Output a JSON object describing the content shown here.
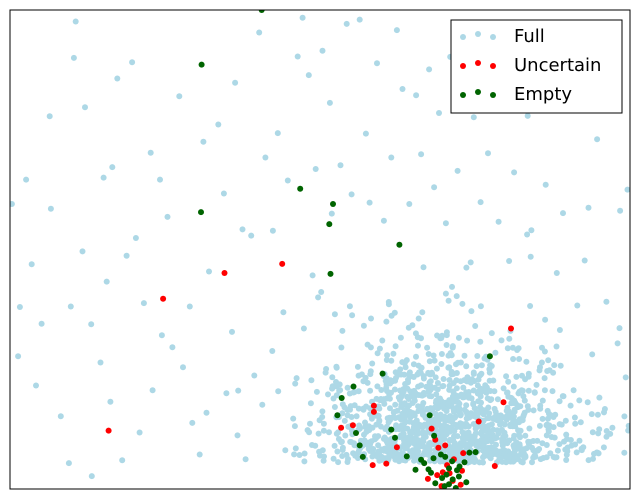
{
  "chart_data": {
    "type": "scatter",
    "title": "",
    "xlabel": "",
    "ylabel": "",
    "xlim": [
      0,
      100
    ],
    "ylim": [
      0,
      100
    ],
    "axis_ticks": false,
    "grid": false,
    "legend_placement": "top-right",
    "series": [
      {
        "name": "Full",
        "color": "#add8e6",
        "cluster": {
          "count": 1250,
          "center": [
            70,
            9
          ],
          "spread": [
            10,
            10
          ]
        },
        "points": [
          [
            0.3,
            59.5
          ],
          [
            1.3,
            27.7
          ],
          [
            1.6,
            38.0
          ],
          [
            2.6,
            64.6
          ],
          [
            3.5,
            46.9
          ],
          [
            5.1,
            34.5
          ],
          [
            6.4,
            77.8
          ],
          [
            6.6,
            58.5
          ],
          [
            8.2,
            15.2
          ],
          [
            9.8,
            38.1
          ],
          [
            10.3,
            90.0
          ],
          [
            10.6,
            97.6
          ],
          [
            11.7,
            49.6
          ],
          [
            12.1,
            79.7
          ],
          [
            13.1,
            34.4
          ],
          [
            13.2,
            2.7
          ],
          [
            15.1,
            65.0
          ],
          [
            15.6,
            43.3
          ],
          [
            16.2,
            18.2
          ],
          [
            16.5,
            67.2
          ],
          [
            17.3,
            85.7
          ],
          [
            18.8,
            48.7
          ],
          [
            19.7,
            89.1
          ],
          [
            20.3,
            52.4
          ],
          [
            20.9,
            11.8
          ],
          [
            21.6,
            38.8
          ],
          [
            22.7,
            70.2
          ],
          [
            24.2,
            64.6
          ],
          [
            24.5,
            32.1
          ],
          [
            25.4,
            56.8
          ],
          [
            26.2,
            29.6
          ],
          [
            27.3,
            82.0
          ],
          [
            29.0,
            38.1
          ],
          [
            29.4,
            13.8
          ],
          [
            30.6,
            7.2
          ],
          [
            31.2,
            72.5
          ],
          [
            32.1,
            45.4
          ],
          [
            33.6,
            76.1
          ],
          [
            34.5,
            61.7
          ],
          [
            35.8,
            32.8
          ],
          [
            36.3,
            84.8
          ],
          [
            37.5,
            54.2
          ],
          [
            38.9,
            52.9
          ],
          [
            39.4,
            23.7
          ],
          [
            40.2,
            95.3
          ],
          [
            41.2,
            69.2
          ],
          [
            42.4,
            53.9
          ],
          [
            43.2,
            74.3
          ],
          [
            44.1,
            36.9
          ],
          [
            44.8,
            64.4
          ],
          [
            46.4,
            90.3
          ],
          [
            47.2,
            98.4
          ],
          [
            48.2,
            86.4
          ],
          [
            48.8,
            44.6
          ],
          [
            49.3,
            66.8
          ],
          [
            50.4,
            91.5
          ],
          [
            51.6,
            80.6
          ],
          [
            51.9,
            57.5
          ],
          [
            53.3,
            67.6
          ],
          [
            54.3,
            97.1
          ],
          [
            55.1,
            61.5
          ],
          [
            56.4,
            98.0
          ],
          [
            57.4,
            74.2
          ],
          [
            58.0,
            59.8
          ],
          [
            59.2,
            88.9
          ],
          [
            60.3,
            56.0
          ],
          [
            61.5,
            69.2
          ],
          [
            62.4,
            95.8
          ],
          [
            63.3,
            83.5
          ],
          [
            64.4,
            59.5
          ],
          [
            65.5,
            82.2
          ],
          [
            66.3,
            69.9
          ],
          [
            66.7,
            46.3
          ],
          [
            67.6,
            87.6
          ],
          [
            68.4,
            63.0
          ],
          [
            69.2,
            78.5
          ],
          [
            70.3,
            55.5
          ],
          [
            71.0,
            90.2
          ],
          [
            72.2,
            66.4
          ],
          [
            73.1,
            96.0
          ],
          [
            74.3,
            47.3
          ],
          [
            74.8,
            77.6
          ],
          [
            75.9,
            59.9
          ],
          [
            77.1,
            70.1
          ],
          [
            77.6,
            95.3
          ],
          [
            78.8,
            55.8
          ],
          [
            79.9,
            85.0
          ],
          [
            80.5,
            47.6
          ],
          [
            81.3,
            66.1
          ],
          [
            82.3,
            93.8
          ],
          [
            83.5,
            77.9
          ],
          [
            84.1,
            54.0
          ],
          [
            85.3,
            80.6
          ],
          [
            86.4,
            63.5
          ],
          [
            87.8,
            87.3
          ],
          [
            88.2,
            45.1
          ],
          [
            89.2,
            57.6
          ],
          [
            90.2,
            92.3
          ],
          [
            91.5,
            38.3
          ],
          [
            92.7,
            47.7
          ],
          [
            93.3,
            58.7
          ],
          [
            94.7,
            73.0
          ],
          [
            95.8,
            16.0
          ],
          [
            96.2,
            39.1
          ],
          [
            97.0,
            81.3
          ],
          [
            98.4,
            58.1
          ],
          [
            99.3,
            23.3
          ],
          [
            99.6,
            62.5
          ],
          [
            4.2,
            21.6
          ],
          [
            9.5,
            5.4
          ],
          [
            14.6,
            26.4
          ],
          [
            18.1,
            6.0
          ],
          [
            23.0,
            20.6
          ],
          [
            27.9,
            25.4
          ],
          [
            31.7,
            15.9
          ],
          [
            34.9,
            20.0
          ],
          [
            36.7,
            11.2
          ],
          [
            38.0,
            6.2
          ],
          [
            40.7,
            17.6
          ],
          [
            42.3,
            28.8
          ],
          [
            44.4,
            8.1
          ],
          [
            46.0,
            22.0
          ],
          [
            47.4,
            33.5
          ],
          [
            48.0,
            12.3
          ],
          [
            49.7,
            40.0
          ],
          [
            50.9,
            24.3
          ],
          [
            52.4,
            36.5
          ],
          [
            53.7,
            8.6
          ],
          [
            85.8,
            29.5
          ],
          [
            86.9,
            12.0
          ],
          [
            88.7,
            33.2
          ],
          [
            90.9,
            20.6
          ],
          [
            92.2,
            8.4
          ],
          [
            93.9,
            28.1
          ],
          [
            96.8,
            11.5
          ],
          [
            98.0,
            30.4
          ]
        ]
      },
      {
        "name": "Uncertain",
        "color": "#ff0000",
        "points": [
          [
            15.9,
            12.2
          ],
          [
            24.7,
            39.7
          ],
          [
            34.6,
            45.1
          ],
          [
            43.9,
            47.0
          ],
          [
            53.4,
            12.8
          ],
          [
            55.3,
            13.3
          ],
          [
            58.7,
            17.4
          ],
          [
            58.7,
            16.1
          ],
          [
            58.5,
            5.0
          ],
          [
            60.7,
            5.3
          ],
          [
            62.4,
            8.7
          ],
          [
            68.6,
            10.3
          ],
          [
            68.0,
            12.6
          ],
          [
            69.1,
            8.6
          ],
          [
            70.2,
            9.1
          ],
          [
            70.5,
            5.0
          ],
          [
            71.6,
            6.2
          ],
          [
            72.9,
            3.8
          ],
          [
            71.4,
            1.7
          ],
          [
            67.4,
            2.1
          ],
          [
            69.6,
            0.6
          ],
          [
            73.1,
            7.5
          ],
          [
            75.6,
            14.1
          ],
          [
            78.2,
            4.8
          ],
          [
            79.6,
            18.1
          ],
          [
            80.8,
            33.5
          ],
          [
            70.9,
            3.3
          ],
          [
            68.9,
            2.9
          ],
          [
            69.8,
            3.5
          ],
          [
            72.7,
            0.9
          ]
        ]
      },
      {
        "name": "Empty",
        "color": "#006400",
        "points": [
          [
            40.6,
            100.0
          ],
          [
            30.9,
            88.6
          ],
          [
            30.8,
            57.8
          ],
          [
            46.8,
            62.7
          ],
          [
            52.1,
            59.5
          ],
          [
            51.5,
            55.3
          ],
          [
            62.8,
            51.0
          ],
          [
            51.7,
            44.9
          ],
          [
            77.4,
            27.7
          ],
          [
            60.1,
            24.1
          ],
          [
            55.4,
            21.4
          ],
          [
            53.5,
            19.0
          ],
          [
            52.8,
            15.4
          ],
          [
            55.8,
            11.7
          ],
          [
            56.4,
            9.1
          ],
          [
            56.9,
            6.7
          ],
          [
            61.5,
            12.4
          ],
          [
            62.1,
            10.7
          ],
          [
            64.0,
            6.8
          ],
          [
            67.7,
            15.4
          ],
          [
            68.4,
            11.1
          ],
          [
            66.3,
            6.1
          ],
          [
            65.4,
            4.0
          ],
          [
            66.8,
            5.4
          ],
          [
            67.5,
            4.1
          ],
          [
            68.3,
            6.4
          ],
          [
            69.5,
            7.2
          ],
          [
            70.2,
            6.7
          ],
          [
            70.8,
            4.3
          ],
          [
            71.3,
            5.8
          ],
          [
            72.5,
            4.7
          ],
          [
            73.3,
            5.6
          ],
          [
            74.1,
            7.6
          ],
          [
            75.1,
            7.7
          ],
          [
            67.9,
            3.4
          ],
          [
            69.7,
            2.3
          ],
          [
            70.8,
            1.0
          ],
          [
            71.9,
            0.2
          ],
          [
            72.4,
            2.6
          ],
          [
            73.6,
            1.4
          ],
          [
            70.1,
            0.6
          ],
          [
            68.6,
            1.2
          ],
          [
            71.4,
            2.0
          ],
          [
            70.4,
            3.0
          ],
          [
            72.1,
            3.9
          ]
        ]
      }
    ]
  }
}
